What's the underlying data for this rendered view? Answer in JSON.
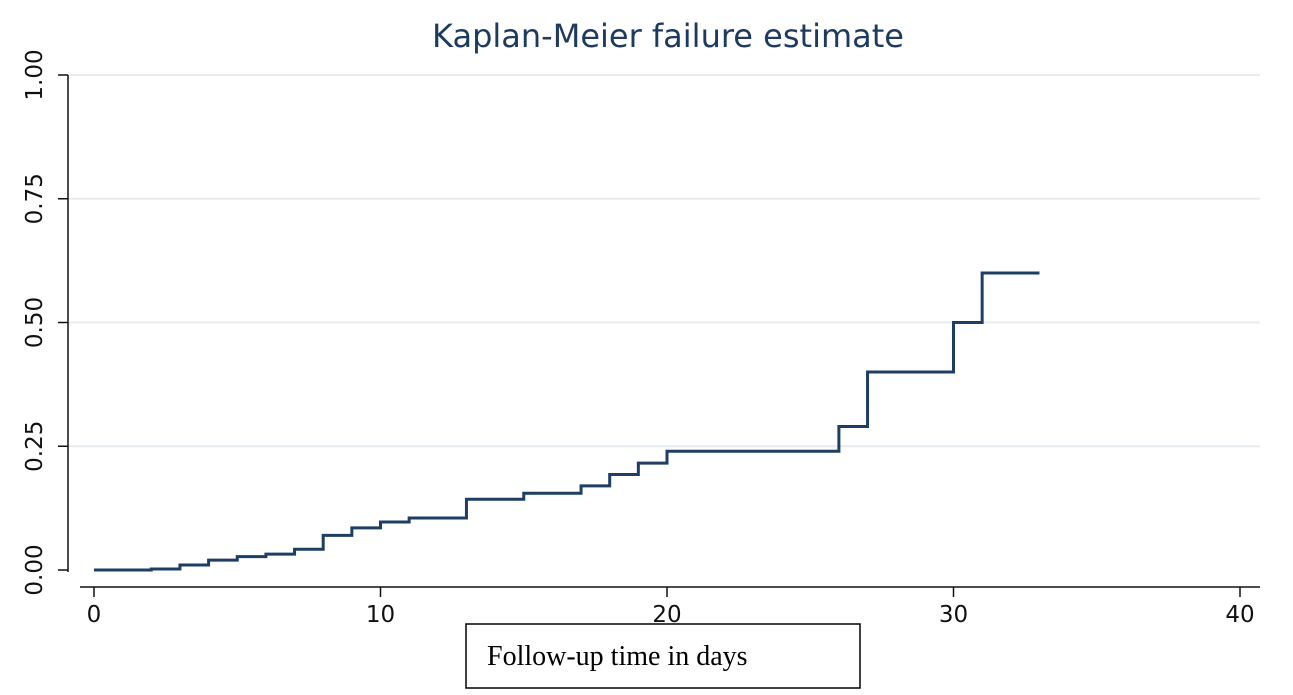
{
  "chart_data": {
    "type": "line",
    "step": true,
    "title": "Kaplan-Meier failure estimate",
    "xlabel": "Follow-up time in days",
    "ylabel": "",
    "xlim": [
      0,
      40
    ],
    "ylim": [
      0,
      1
    ],
    "xticks": [
      0,
      10,
      20,
      30,
      40
    ],
    "yticks": [
      0,
      0.25,
      0.5,
      0.75,
      1
    ],
    "xtick_labels": [
      "0",
      "10",
      "20",
      "30",
      "40"
    ],
    "ytick_labels": [
      "0.00",
      "0.25",
      "0.50",
      "0.75",
      "1.00"
    ],
    "grid": true,
    "legend": "none",
    "series": [
      {
        "x": [
          0,
          2,
          3,
          4,
          5,
          6,
          7,
          8,
          9,
          10,
          11,
          13,
          15,
          17,
          18,
          19,
          20,
          26,
          27,
          30,
          31,
          33
        ],
        "y": [
          0,
          0.002,
          0.01,
          0.02,
          0.027,
          0.032,
          0.042,
          0.07,
          0.085,
          0.097,
          0.105,
          0.143,
          0.155,
          0.17,
          0.193,
          0.216,
          0.24,
          0.29,
          0.4,
          0.5,
          0.6,
          0.6
        ]
      }
    ],
    "colors": {
      "line": "#1f3e63",
      "grid": "#e7ecf1",
      "axis": "#111111",
      "title": "#1e3b5f"
    }
  }
}
